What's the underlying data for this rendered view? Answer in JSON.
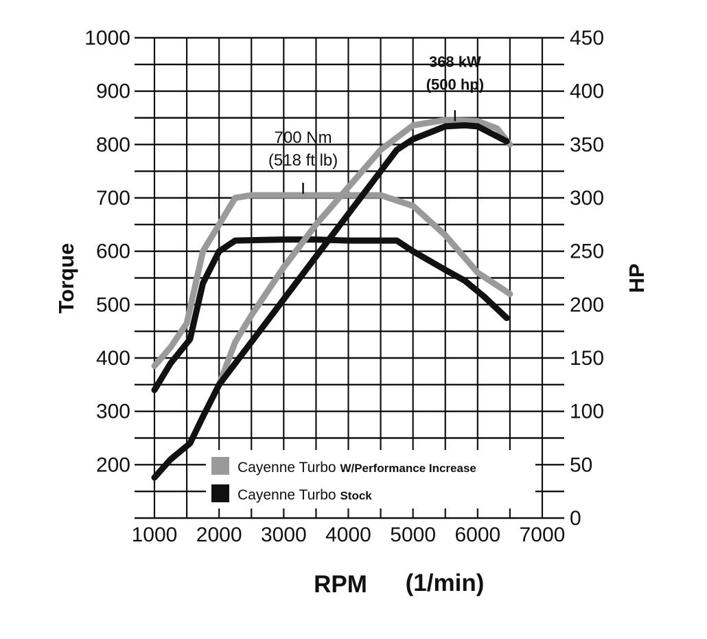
{
  "chart_data": {
    "type": "line",
    "x_axis": {
      "label": "RPM",
      "unit_label": "(1/min)",
      "min": 1000,
      "max": 7000,
      "tick_step": 1000,
      "ticks": [
        "1000",
        "2000",
        "3000",
        "4000",
        "5000",
        "6000",
        "7000"
      ]
    },
    "y_left": {
      "label": "Torque",
      "min": 100,
      "max": 1000,
      "ticks": [
        {
          "v": 1000,
          "label": "1000"
        },
        {
          "v": 900,
          "label": "900"
        },
        {
          "v": 800,
          "label": "800"
        },
        {
          "v": 700,
          "label": "700"
        },
        {
          "v": 600,
          "label": "600"
        },
        {
          "v": 500,
          "label": "500"
        },
        {
          "v": 400,
          "label": "400"
        },
        {
          "v": 300,
          "label": "300"
        },
        {
          "v": 200,
          "label": "200"
        }
      ]
    },
    "y_right": {
      "label": "HP",
      "min": 0,
      "max": 450,
      "ticks": [
        {
          "v": 450,
          "label": "450"
        },
        {
          "v": 400,
          "label": "400"
        },
        {
          "v": 350,
          "label": "350"
        },
        {
          "v": 300,
          "label": "300"
        },
        {
          "v": 250,
          "label": "250"
        },
        {
          "v": 200,
          "label": "200"
        },
        {
          "v": 150,
          "label": "150"
        },
        {
          "v": 100,
          "label": "100"
        },
        {
          "v": 50,
          "label": "50"
        },
        {
          "v": 0,
          "label": "0"
        }
      ]
    },
    "grid": true,
    "minor_horizontal_step": 50,
    "legend_position": "bottom-center",
    "series": [
      {
        "name": "Cayenne Turbo W/Performance Increase (torque)",
        "axis": "left",
        "color": "#9a9a9a",
        "points": [
          [
            1000,
            385
          ],
          [
            1250,
            420
          ],
          [
            1500,
            465
          ],
          [
            1750,
            600
          ],
          [
            2000,
            650
          ],
          [
            2250,
            700
          ],
          [
            2500,
            705
          ],
          [
            3000,
            705
          ],
          [
            3500,
            705
          ],
          [
            4000,
            705
          ],
          [
            4500,
            705
          ],
          [
            5000,
            685
          ],
          [
            5500,
            630
          ],
          [
            6000,
            560
          ],
          [
            6500,
            520
          ]
        ]
      },
      {
        "name": "Cayenne Turbo Stock (torque)",
        "axis": "left",
        "color": "#111111",
        "points": [
          [
            1000,
            340
          ],
          [
            1250,
            390
          ],
          [
            1550,
            435
          ],
          [
            1750,
            540
          ],
          [
            2000,
            600
          ],
          [
            2250,
            620
          ],
          [
            3000,
            622
          ],
          [
            3500,
            622
          ],
          [
            4000,
            620
          ],
          [
            4500,
            620
          ],
          [
            4750,
            620
          ],
          [
            5000,
            600
          ],
          [
            5500,
            565
          ],
          [
            5800,
            545
          ],
          [
            6100,
            515
          ],
          [
            6450,
            475
          ]
        ]
      },
      {
        "name": "Cayenne Turbo W/Performance Increase (HP)",
        "axis": "right",
        "color": "#9a9a9a",
        "points": [
          [
            2000,
            125
          ],
          [
            2250,
            165
          ],
          [
            2500,
            190
          ],
          [
            3000,
            235
          ],
          [
            3500,
            275
          ],
          [
            4000,
            310
          ],
          [
            4500,
            345
          ],
          [
            5000,
            368
          ],
          [
            5500,
            373
          ],
          [
            6000,
            372
          ],
          [
            6300,
            365
          ],
          [
            6500,
            350
          ]
        ]
      },
      {
        "name": "Cayenne Turbo Stock (HP)",
        "axis": "right",
        "color": "#111111",
        "points": [
          [
            1000,
            38
          ],
          [
            1250,
            55
          ],
          [
            1550,
            70
          ],
          [
            1750,
            95
          ],
          [
            2000,
            125
          ],
          [
            2500,
            165
          ],
          [
            3000,
            205
          ],
          [
            3500,
            245
          ],
          [
            4000,
            285
          ],
          [
            4500,
            325
          ],
          [
            4750,
            345
          ],
          [
            5000,
            355
          ],
          [
            5500,
            367
          ],
          [
            5800,
            368
          ],
          [
            6000,
            367
          ],
          [
            6450,
            353
          ]
        ]
      }
    ],
    "annotations": [
      {
        "lines": [
          "700 Nm",
          "(518 ft lb)"
        ],
        "x": 3300,
        "axis": "left",
        "y": 700,
        "style": "normal"
      },
      {
        "lines": [
          "368 kW",
          "(500 hp)"
        ],
        "x": 5650,
        "axis": "right",
        "y": 368,
        "style": "bold"
      }
    ],
    "legend": [
      {
        "plain": "Cayenne Turbo",
        "bold": "W/Performance Increase",
        "color": "#9a9a9a"
      },
      {
        "plain": "Cayenne Turbo",
        "bold": "Stock",
        "color": "#111111"
      }
    ]
  }
}
